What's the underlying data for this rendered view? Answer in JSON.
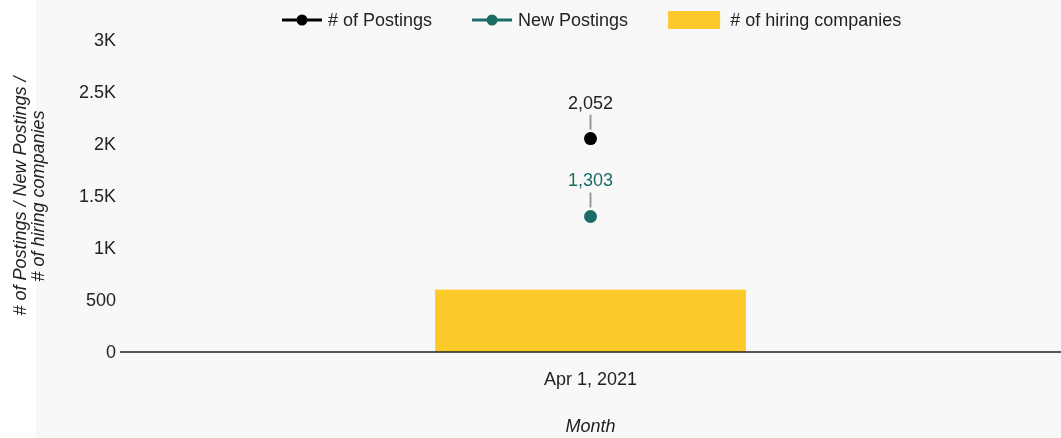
{
  "chart_data": {
    "type": "bar",
    "xlabel": "Month",
    "ylabel": "# of Postings / New Postings / # of hiring companies",
    "categories": [
      "Apr 1, 2021"
    ],
    "series": [
      {
        "name": "# of Postings",
        "type": "line",
        "color": "#000000",
        "values": [
          2052
        ],
        "value_labels": [
          "2,052"
        ]
      },
      {
        "name": "New Postings",
        "type": "line",
        "color": "#1b6b67",
        "values": [
          1303
        ],
        "value_labels": [
          "1,303"
        ]
      },
      {
        "name": "# of hiring companies",
        "color": "#fcc92a",
        "values": [
          600
        ]
      }
    ],
    "ylim": [
      0,
      3000
    ],
    "yticks": [
      {
        "value": 0,
        "label": "0"
      },
      {
        "value": 500,
        "label": "500"
      },
      {
        "value": 1000,
        "label": "1K"
      },
      {
        "value": 1500,
        "label": "1.5K"
      },
      {
        "value": 2000,
        "label": "2K"
      },
      {
        "value": 2500,
        "label": "2.5K"
      },
      {
        "value": 3000,
        "label": "3K"
      }
    ],
    "legend": "top",
    "marker": "circle",
    "grid": false
  }
}
